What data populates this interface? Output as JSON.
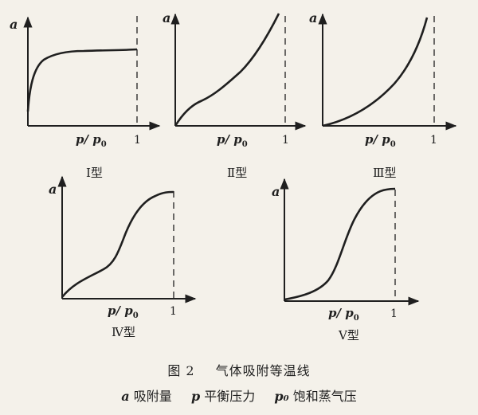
{
  "panels": [
    {
      "id": "type-1",
      "y_label": "a",
      "x_label": "p/p0",
      "x_label_main": "p/ p",
      "x_label_sub": "0",
      "tick_label": "1",
      "caption": "Ⅰ型"
    },
    {
      "id": "type-2",
      "y_label": "a",
      "x_label": "p/p0",
      "x_label_main": "p/ p",
      "x_label_sub": "0",
      "tick_label": "1",
      "caption": "Ⅱ型"
    },
    {
      "id": "type-3",
      "y_label": "a",
      "x_label": "p/p0",
      "x_label_main": "p/ p",
      "x_label_sub": "0",
      "tick_label": "1",
      "caption": "Ⅲ型"
    },
    {
      "id": "type-4",
      "y_label": "a",
      "x_label": "p/p0",
      "x_label_main": "p/ p",
      "x_label_sub": "0",
      "tick_label": "1",
      "caption": "Ⅳ型"
    },
    {
      "id": "type-5",
      "y_label": "a",
      "x_label": "p/p0",
      "x_label_main": "p/ p",
      "x_label_sub": "0",
      "tick_label": "1",
      "caption": "Ⅴ型"
    }
  ],
  "caption": {
    "figure_number": "图 2",
    "title": "气体吸附等温线",
    "legend": [
      {
        "symbol": "a",
        "meaning": "吸附量"
      },
      {
        "symbol": "p",
        "meaning": "平衡压力"
      },
      {
        "symbol": "p₀",
        "meaning": "饱和蒸气压"
      }
    ]
  },
  "colors": {
    "ink": "#1f1f1f",
    "paper": "#f4f1ea"
  }
}
